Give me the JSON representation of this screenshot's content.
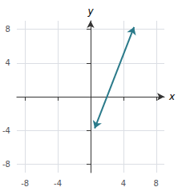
{
  "chart_data": {
    "type": "line",
    "x": [
      0.5,
      5.3
    ],
    "values": [
      -3.75,
      8.25
    ],
    "color": "#2a7a8a",
    "marker": "arrow",
    "xlabel": "x",
    "ylabel": "y",
    "xlim": [
      -9,
      9
    ],
    "ylim": [
      -9,
      9
    ],
    "xticks": [
      -8,
      -4,
      {
        "value": 0,
        "label": null
      },
      4,
      8
    ],
    "yticks": [
      -8,
      -4,
      {
        "value": 0,
        "label": null
      },
      4,
      8
    ],
    "grid": true
  }
}
